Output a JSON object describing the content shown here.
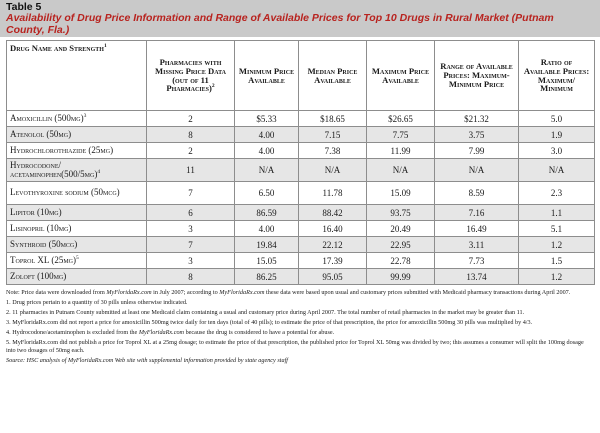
{
  "header": {
    "label": "Table 5",
    "title": "Availability of Drug Price Information and Range of Available Prices for Top 10 Drugs in Rural Market (Putnam County, Fla.)"
  },
  "table": {
    "columns": [
      {
        "text": "Drug Name and Strength",
        "sup": "1"
      },
      {
        "text": "Pharmacies with Missing Price Data (out of 11 Pharmacies)",
        "sup": "2"
      },
      {
        "text": "Minimum Price Available",
        "sup": ""
      },
      {
        "text": "Median Price Available",
        "sup": ""
      },
      {
        "text": "Maximum Price Available",
        "sup": ""
      },
      {
        "text": "Range of Available Prices: Maximum-Minimum Price",
        "sup": ""
      },
      {
        "text": "Ratio of Available Prices: Maximum/ Minimum",
        "sup": ""
      }
    ],
    "rows": [
      {
        "drug": "Amoxicillin (500mg)",
        "sup": "3",
        "missing": "2",
        "min": "$5.33",
        "median": "$18.65",
        "max": "$26.65",
        "range": "$21.32",
        "ratio": "5.0"
      },
      {
        "drug": "Atenolol (50mg)",
        "sup": "",
        "missing": "8",
        "min": "4.00",
        "median": "7.15",
        "max": "7.75",
        "range": "3.75",
        "ratio": "1.9"
      },
      {
        "drug": "Hydrochlorothiazide (25mg)",
        "sup": "",
        "missing": "2",
        "min": "4.00",
        "median": "7.38",
        "max": "11.99",
        "range": "7.99",
        "ratio": "3.0"
      },
      {
        "drug": "Hydrocodone/ acetaminophen(500/5mg)",
        "sup": "4",
        "missing": "11",
        "min": "N/A",
        "median": "N/A",
        "max": "N/A",
        "range": "N/A",
        "ratio": "N/A"
      },
      {
        "drug": "Levothyroxine sodium (50mcg)",
        "sup": "",
        "missing": "7",
        "min": "6.50",
        "median": "11.78",
        "max": "15.09",
        "range": "8.59",
        "ratio": "2.3"
      },
      {
        "drug": "Lipitor (10mg)",
        "sup": "",
        "missing": "6",
        "min": "86.59",
        "median": "88.42",
        "max": "93.75",
        "range": "7.16",
        "ratio": "1.1"
      },
      {
        "drug": "Lisinopril (10mg)",
        "sup": "",
        "missing": "3",
        "min": "4.00",
        "median": "16.40",
        "max": "20.49",
        "range": "16.49",
        "ratio": "5.1"
      },
      {
        "drug": "Synthroid (50mcg)",
        "sup": "",
        "missing": "7",
        "min": "19.84",
        "median": "22.12",
        "max": "22.95",
        "range": "3.11",
        "ratio": "1.2"
      },
      {
        "drug": "Toprol XL (25mg)",
        "sup": "5",
        "missing": "3",
        "min": "15.05",
        "median": "17.39",
        "max": "22.78",
        "range": "7.73",
        "ratio": "1.5"
      },
      {
        "drug": "Zoloft (100mg)",
        "sup": "",
        "missing": "8",
        "min": "86.25",
        "median": "95.05",
        "max": "99.99",
        "range": "13.74",
        "ratio": "1.2"
      }
    ]
  },
  "notes": {
    "main_a": "Note: Price data were downloaded from ",
    "main_site1": "MyFloridaRx.com",
    "main_b": " in July 2007; according to ",
    "main_site2": "MyFloridaRx.com",
    "main_c": " these data were based upon usual and customary prices submitted with Medicaid pharmacy transactions during April 2007.",
    "n1": "1. Drug prices pertain to a quantity of 30 pills unless otherwise indicated.",
    "n2": "2. 11 pharmacies in Putnam County submitted at least one Medicaid claim containing a usual and customary price during April 2007. The total number of retail pharmacies in the market may be greater than 11.",
    "n3": "3. MyFloridaRx.com did not report a price for amoxicillin 500mg twice daily for ten days (total of 40 pills); to estimate the price of that prescription, the price for amoxicillin 500mg 30 pills was multiplied by 4/3.",
    "n4_a": "4. Hydrocodone/acetaminophen is excluded from the ",
    "n4_site": "MyFloridaRx.com",
    "n4_b": " because the drug is considered to have a potential for abuse.",
    "n5": "5. MyFloridaRx.com did not publish a price for Toprol XL at a 25mg dosage; to estimate the price of that prescription, the published price for Toprol XL 50mg was divided by two; this assumes a consumer will split the 100mg dosage into two dosages of 50mg each.",
    "source": "Source: HSC analysis of MyFloridaRx.com Web site with supplemental information provided by state agency staff"
  }
}
